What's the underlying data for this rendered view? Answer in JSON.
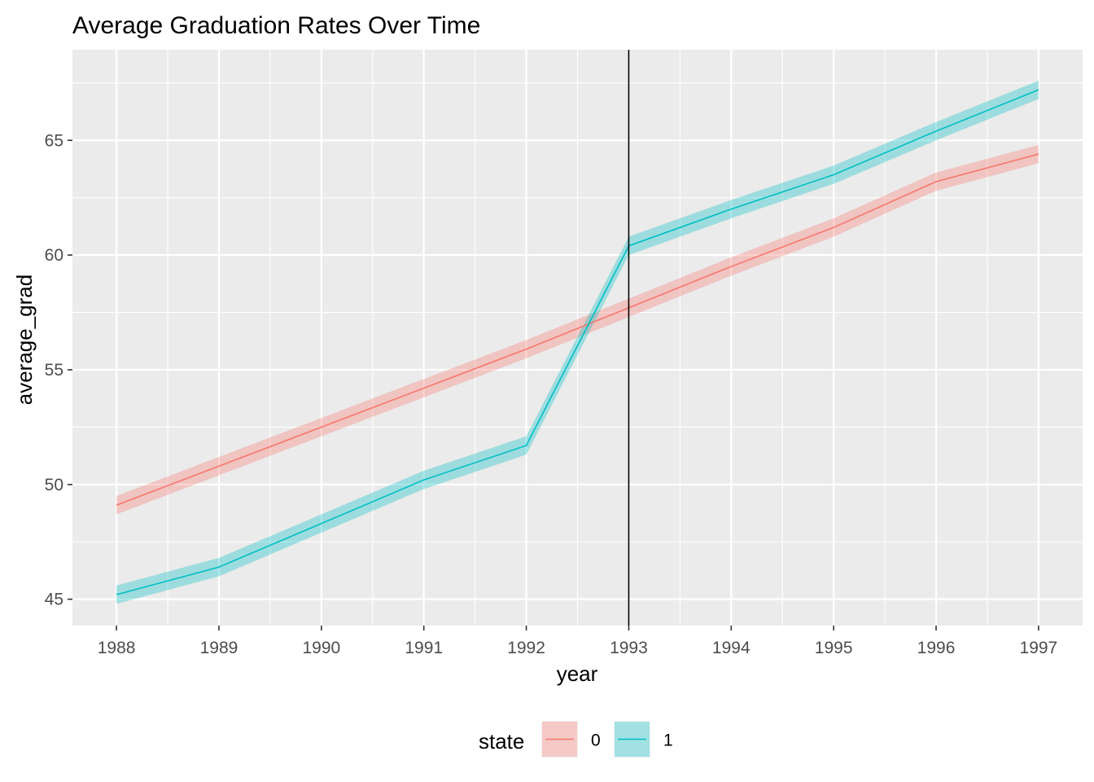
{
  "chart_data": {
    "type": "line",
    "title": "Average Graduation Rates Over Time",
    "xlabel": "year",
    "ylabel": "average_grad",
    "x": [
      1988,
      1989,
      1990,
      1991,
      1992,
      1993,
      1994,
      1995,
      1996,
      1997
    ],
    "xlim": [
      1987.57,
      1997.43
    ],
    "ylim": [
      43.85,
      68.95
    ],
    "y_ticks": [
      "45",
      "50",
      "55",
      "60",
      "65"
    ],
    "x_ticks": [
      "1988",
      "1989",
      "1990",
      "1991",
      "1992",
      "1993",
      "1994",
      "1995",
      "1996",
      "1997"
    ],
    "series": [
      {
        "name": "0",
        "color": "#F8766D",
        "values": [
          49.1,
          50.8,
          52.5,
          54.2,
          55.9,
          57.7,
          59.5,
          61.2,
          63.2,
          64.4
        ],
        "ci_halfwidth": 0.4
      },
      {
        "name": "1",
        "color": "#00BFC4",
        "values": [
          45.2,
          46.4,
          48.3,
          50.2,
          51.7,
          60.4,
          62.0,
          63.5,
          65.4,
          67.2
        ],
        "ci_halfwidth": 0.4
      }
    ],
    "vline": 1993,
    "vline_color": "#000000",
    "grid": true,
    "panel_background": "#EBEBEB",
    "grid_color": "#FFFFFF",
    "legend": {
      "title": "state",
      "position": "bottom",
      "entries": [
        "0",
        "1"
      ]
    }
  }
}
